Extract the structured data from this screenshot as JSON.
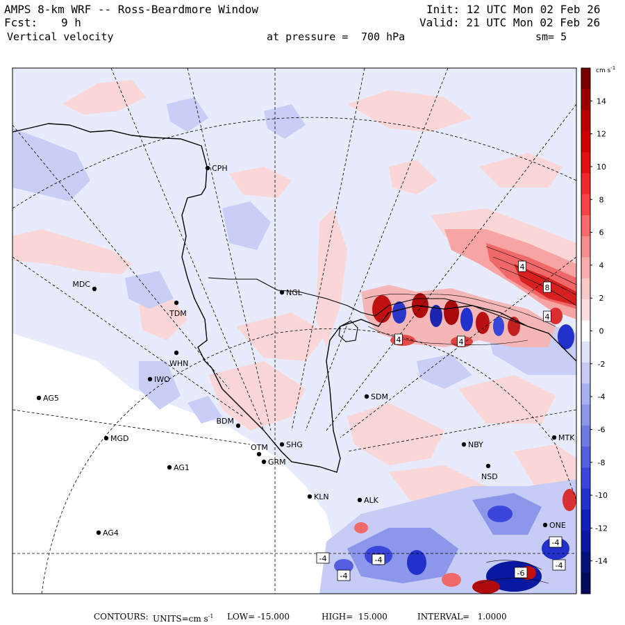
{
  "header": {
    "title": "AMPS 8-km WRF -- Ross-Beardmore Window",
    "forecast_label": "Fcst:",
    "forecast_hours": "9 h",
    "field": "Vertical velocity",
    "init": "Init: 12 UTC Mon 02 Feb 26",
    "valid": "Valid: 21 UTC Mon 02 Feb 26",
    "pressure_label": "at pressure =",
    "pressure_value": "700 hPa",
    "smoothing": "sm= 5"
  },
  "colorbar": {
    "units": "cm s",
    "units_exp": "-1",
    "ticks": [
      "14",
      "12",
      "10",
      "8",
      "6",
      "4",
      "2",
      "0",
      "-2",
      "-4",
      "-6",
      "-8",
      "-10",
      "-12",
      "-14"
    ],
    "colors_top_to_bottom": [
      "#7a0000",
      "#9a0000",
      "#b80000",
      "#d00000",
      "#e01010",
      "#ee2a2a",
      "#f44444",
      "#f66a6a",
      "#f88c8c",
      "#faaeae",
      "#fbc8c8",
      "#fddede",
      "#ffffff",
      "#dfe3fb",
      "#c5cbf6",
      "#a9b1f0",
      "#8c96eb",
      "#6f7be5",
      "#535fdf",
      "#3a46d9",
      "#2230cc",
      "#1020b8",
      "#0818a0",
      "#04107e",
      "#020a5c"
    ],
    "value_max": 16,
    "value_min": -16
  },
  "stations": [
    {
      "id": "CPH"
    },
    {
      "id": "NGL"
    },
    {
      "id": "MDC"
    },
    {
      "id": "TDM"
    },
    {
      "id": "WHN"
    },
    {
      "id": "IWO"
    },
    {
      "id": "AG5"
    },
    {
      "id": "SDM"
    },
    {
      "id": "BDM"
    },
    {
      "id": "MGD"
    },
    {
      "id": "SHG"
    },
    {
      "id": "OTM"
    },
    {
      "id": "GRM"
    },
    {
      "id": "AG1"
    },
    {
      "id": "NBY"
    },
    {
      "id": "NSD"
    },
    {
      "id": "MTK"
    },
    {
      "id": "KLN"
    },
    {
      "id": "ALK"
    },
    {
      "id": "AG4"
    },
    {
      "id": "ONE"
    }
  ],
  "contour_labels": [
    "4",
    "8",
    "4",
    "4",
    "4",
    "-4",
    "-4",
    "-4",
    "-4",
    "-4",
    "-6"
  ],
  "footer": {
    "contours_label": "CONTOURS:",
    "units_label": "UNITS=cm s",
    "units_exp": "-1",
    "low": "LOW= -15.000",
    "high": "HIGH=  15.000",
    "interval": "INTERVAL=   1.0000"
  }
}
